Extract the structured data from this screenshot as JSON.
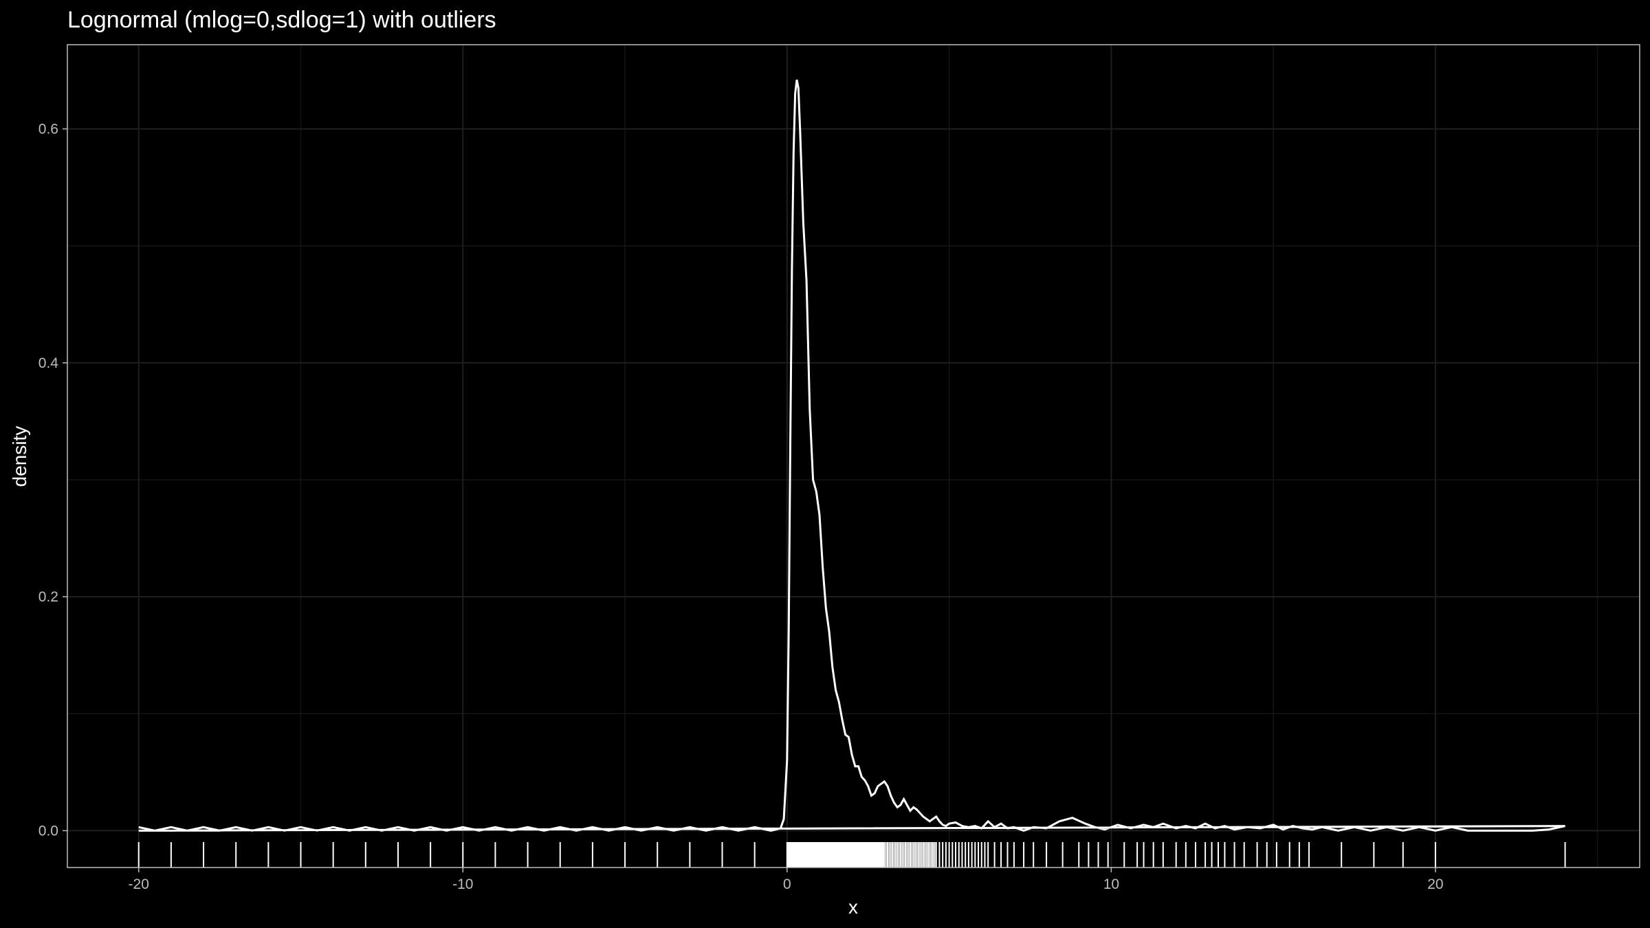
{
  "chart_data": {
    "type": "line",
    "title": "Lognormal (mlog=0,sdlog=1) with outliers",
    "xlabel": "x",
    "ylabel": "density",
    "xlim": [
      -22.2,
      26.3
    ],
    "ylim": [
      -0.0315,
      0.672
    ],
    "x_ticks": [
      -20,
      -10,
      0,
      10,
      20
    ],
    "x_tick_labels": [
      "-20",
      "-10",
      "0",
      "10",
      "20"
    ],
    "y_ticks": [
      0.0,
      0.2,
      0.4,
      0.6
    ],
    "y_tick_labels": [
      "0.0",
      "0.2",
      "0.4",
      "0.6"
    ],
    "grid": true,
    "colors": {
      "background": "#000000",
      "line": "#ffffff",
      "grid_major": "#1f1f1f",
      "grid_minor": "#141414",
      "panel_border": "#bdbdbd"
    },
    "series": [
      {
        "x": [
          -20,
          -19.5,
          -19,
          -18.5,
          -18,
          -17.5,
          -17,
          -16.5,
          -16,
          -15.5,
          -15,
          -14.5,
          -14,
          -13.5,
          -13,
          -12.5,
          -12,
          -11.5,
          -11,
          -10.5,
          -10,
          -9.5,
          -9,
          -8.5,
          -8,
          -7.5,
          -7,
          -6.5,
          -6,
          -5.5,
          -5,
          -4.5,
          -4,
          -3.5,
          -3,
          -2.5,
          -2,
          -1.5,
          -1,
          -0.5,
          -0.2,
          -0.1,
          0,
          0.05,
          0.1,
          0.15,
          0.2,
          0.25,
          0.3,
          0.35,
          0.4,
          0.5,
          0.6,
          0.7,
          0.8,
          0.9,
          1.0,
          1.1,
          1.2,
          1.3,
          1.4,
          1.5,
          1.6,
          1.7,
          1.8,
          1.9,
          2.0,
          2.1,
          2.2,
          2.3,
          2.4,
          2.5,
          2.6,
          2.7,
          2.8,
          2.9,
          3.0,
          3.1,
          3.2,
          3.3,
          3.4,
          3.5,
          3.6,
          3.7,
          3.8,
          3.9,
          4.0,
          4.1,
          4.2,
          4.3,
          4.4,
          4.5,
          4.6,
          4.7,
          4.8,
          4.9,
          5.0,
          5.2,
          5.4,
          5.6,
          5.8,
          6.0,
          6.2,
          6.4,
          6.6,
          6.8,
          7.0,
          7.3,
          7.6,
          8.0,
          8.4,
          8.8,
          9.2,
          9.5,
          9.8,
          10.2,
          10.6,
          11.0,
          11.3,
          11.6,
          12.0,
          12.3,
          12.6,
          12.9,
          13.2,
          13.5,
          13.8,
          14.2,
          14.6,
          15.0,
          15.3,
          15.6,
          15.9,
          16.2,
          16.5,
          17.0,
          17.5,
          18.0,
          18.5,
          19.0,
          19.5,
          20.0,
          20.5,
          21.0,
          22.0,
          23.0,
          23.5,
          24.0
        ],
        "y": [
          0.003,
          0.0,
          0.003,
          0.0,
          0.003,
          0.0,
          0.003,
          0.0,
          0.003,
          0.0,
          0.003,
          0.0,
          0.003,
          0.0,
          0.003,
          0.0,
          0.003,
          0.0,
          0.003,
          0.0,
          0.003,
          0.0,
          0.003,
          0.0,
          0.003,
          0.0,
          0.003,
          0.0,
          0.003,
          0.0,
          0.003,
          0.0,
          0.003,
          0.0,
          0.003,
          0.0,
          0.003,
          0.0,
          0.003,
          0.0,
          0.002,
          0.01,
          0.06,
          0.17,
          0.33,
          0.48,
          0.58,
          0.63,
          0.642,
          0.635,
          0.6,
          0.52,
          0.47,
          0.36,
          0.3,
          0.29,
          0.27,
          0.225,
          0.19,
          0.17,
          0.14,
          0.12,
          0.11,
          0.095,
          0.082,
          0.08,
          0.065,
          0.055,
          0.055,
          0.046,
          0.043,
          0.038,
          0.03,
          0.032,
          0.038,
          0.04,
          0.042,
          0.038,
          0.03,
          0.024,
          0.02,
          0.022,
          0.027,
          0.022,
          0.017,
          0.02,
          0.018,
          0.015,
          0.012,
          0.01,
          0.008,
          0.01,
          0.012,
          0.008,
          0.005,
          0.004,
          0.006,
          0.007,
          0.004,
          0.003,
          0.004,
          0.002,
          0.008,
          0.003,
          0.006,
          0.002,
          0.003,
          0.0,
          0.003,
          0.002,
          0.008,
          0.011,
          0.006,
          0.003,
          0.001,
          0.005,
          0.002,
          0.005,
          0.003,
          0.006,
          0.002,
          0.004,
          0.002,
          0.006,
          0.002,
          0.004,
          0.001,
          0.003,
          0.002,
          0.005,
          0.001,
          0.004,
          0.002,
          0.001,
          0.003,
          0.0,
          0.003,
          0.0,
          0.003,
          0.0,
          0.003,
          0.0,
          0.003,
          0.0,
          0.0,
          0.0,
          0.001,
          0.004
        ]
      }
    ],
    "rug": [
      -20,
      -19,
      -18,
      -17,
      -16,
      -15,
      -14,
      -13,
      -12,
      -11,
      -10,
      -9,
      -8,
      -7,
      -6,
      -5,
      -4,
      -3,
      -2,
      -1,
      0.0,
      0.03,
      0.06,
      0.09,
      0.12,
      0.15,
      0.18,
      0.21,
      0.24,
      0.27,
      0.3,
      0.33,
      0.36,
      0.39,
      0.42,
      0.45,
      0.48,
      0.51,
      0.54,
      0.57,
      0.6,
      0.63,
      0.66,
      0.69,
      0.72,
      0.75,
      0.78,
      0.81,
      0.84,
      0.87,
      0.9,
      0.93,
      0.96,
      0.99,
      1.02,
      1.05,
      1.08,
      1.11,
      1.14,
      1.17,
      1.2,
      1.23,
      1.26,
      1.29,
      1.32,
      1.35,
      1.38,
      1.41,
      1.44,
      1.47,
      1.5,
      1.53,
      1.56,
      1.59,
      1.62,
      1.65,
      1.68,
      1.71,
      1.74,
      1.77,
      1.8,
      1.83,
      1.86,
      1.89,
      1.92,
      1.95,
      1.98,
      2.01,
      2.04,
      2.07,
      2.1,
      2.13,
      2.16,
      2.19,
      2.22,
      2.25,
      2.28,
      2.31,
      2.34,
      2.37,
      2.4,
      2.43,
      2.46,
      2.49,
      2.52,
      2.55,
      2.58,
      2.61,
      2.64,
      2.67,
      2.7,
      2.73,
      2.76,
      2.79,
      2.82,
      2.85,
      2.88,
      2.91,
      2.94,
      2.97,
      3.0,
      3.05,
      3.1,
      3.15,
      3.2,
      3.25,
      3.3,
      3.35,
      3.4,
      3.45,
      3.5,
      3.55,
      3.6,
      3.65,
      3.7,
      3.75,
      3.8,
      3.85,
      3.9,
      3.95,
      4.0,
      4.05,
      4.1,
      4.15,
      4.2,
      4.25,
      4.3,
      4.35,
      4.4,
      4.45,
      4.5,
      4.55,
      4.6,
      4.7,
      4.8,
      4.9,
      5.0,
      5.1,
      5.2,
      5.3,
      5.4,
      5.5,
      5.6,
      5.7,
      5.8,
      5.9,
      6.0,
      6.1,
      6.2,
      6.4,
      6.6,
      6.8,
      7.0,
      7.3,
      7.6,
      8.0,
      8.5,
      9.0,
      9.3,
      9.6,
      9.9,
      10.4,
      10.8,
      11.0,
      11.3,
      11.6,
      12.0,
      12.3,
      12.6,
      12.9,
      13.1,
      13.3,
      13.5,
      13.8,
      14.1,
      14.5,
      14.8,
      15.1,
      15.5,
      15.8,
      16.1,
      17.1,
      18.1,
      19.0,
      20.0,
      24.0
    ]
  }
}
